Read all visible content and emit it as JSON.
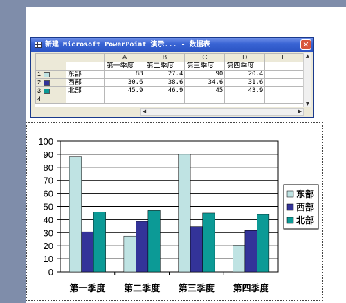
{
  "datasheet": {
    "title": "新建 Microsoft PowerPoint 演示... - 数据表",
    "close_label": "✕",
    "columns": [
      "A",
      "B",
      "C",
      "D",
      "E"
    ],
    "headers": [
      "第一季度",
      "第二季度",
      "第三季度",
      "第四季度",
      ""
    ],
    "rows": [
      {
        "num": "1",
        "label": "东部",
        "color": "#bfe3e3",
        "values": [
          "88",
          "27.4",
          "90",
          "20.4",
          ""
        ]
      },
      {
        "num": "2",
        "label": "西部",
        "color": "#333399",
        "values": [
          "30.6",
          "38.6",
          "34.6",
          "31.6",
          ""
        ]
      },
      {
        "num": "3",
        "label": "北部",
        "color": "#0c9a96",
        "values": [
          "45.9",
          "46.9",
          "45",
          "43.9",
          ""
        ]
      },
      {
        "num": "4",
        "label": "",
        "color": "",
        "values": [
          "",
          "",
          "",
          "",
          ""
        ]
      }
    ]
  },
  "chart_data": {
    "type": "bar",
    "categories": [
      "第一季度",
      "第二季度",
      "第三季度",
      "第四季度"
    ],
    "series": [
      {
        "name": "东部",
        "color": "#bfe3e3",
        "values": [
          88,
          27.4,
          90,
          20.4
        ]
      },
      {
        "name": "西部",
        "color": "#333399",
        "values": [
          30.6,
          38.6,
          34.6,
          31.6
        ]
      },
      {
        "name": "北部",
        "color": "#0c9a96",
        "values": [
          45.9,
          46.9,
          45,
          43.9
        ]
      }
    ],
    "yticks": [
      "0",
      "10",
      "20",
      "30",
      "40",
      "50",
      "60",
      "70",
      "80",
      "90",
      "100"
    ],
    "ylim": [
      0,
      100
    ],
    "grid": true,
    "legend": "right"
  }
}
